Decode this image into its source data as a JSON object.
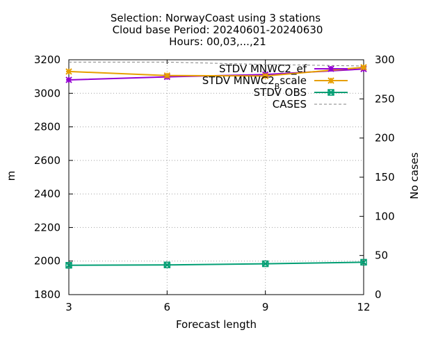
{
  "chart_data": {
    "type": "line",
    "title_lines": [
      "Selection: NorwayCoast using     3 stations",
      "Cloud base   Period: 20240601-20240630",
      "Hours: 00,03,...,21"
    ],
    "xlabel": "Forecast length",
    "ylabel": "m",
    "y2label": "No cases",
    "x": [
      3,
      6,
      9,
      12
    ],
    "xlim": [
      3,
      12
    ],
    "ylim": [
      1800,
      3200
    ],
    "y2lim": [
      0,
      300
    ],
    "xticks": [
      3,
      6,
      9,
      12
    ],
    "yticks": [
      1800,
      2000,
      2200,
      2400,
      2600,
      2800,
      3000,
      3200
    ],
    "y2ticks": [
      0,
      50,
      100,
      150,
      200,
      250,
      300
    ],
    "grid": true,
    "legend_position": "top-right",
    "series": [
      {
        "name": "STDV MNWC2_ef",
        "axis": "y",
        "color": "#9400d3",
        "marker": "star",
        "values": [
          3080,
          3098,
          3112,
          3145
        ]
      },
      {
        "name": "STDV MNWC2_B scale",
        "name_parts": [
          "STDV MNWC2",
          "B",
          "scale"
        ],
        "axis": "y",
        "color": "#e69f00",
        "marker": "star",
        "values": [
          3130,
          3106,
          3103,
          3155
        ]
      },
      {
        "name": "STDV OBS",
        "axis": "y",
        "color": "#009e73",
        "marker": "x-box",
        "values": [
          1975,
          1977,
          1984,
          1993
        ]
      },
      {
        "name": "CASES",
        "axis": "y2",
        "color": "#808080",
        "dash": true,
        "values": [
          297,
          297,
          294,
          292
        ]
      }
    ]
  }
}
